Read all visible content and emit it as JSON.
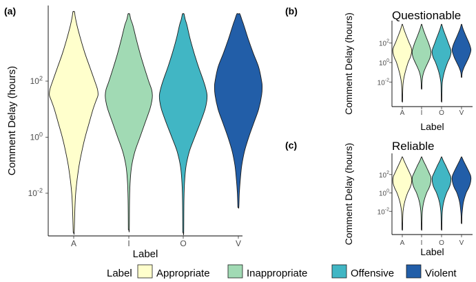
{
  "panels": {
    "a": {
      "tag": "(a)"
    },
    "b": {
      "tag": "(b)",
      "title": "Questionable"
    },
    "c": {
      "tag": "(c)",
      "title": "Reliable"
    }
  },
  "legend": {
    "title": "Label",
    "entries": [
      {
        "name": "Appropriate",
        "color": "#ffffcc"
      },
      {
        "name": "Inappropriate",
        "color": "#a1dab4"
      },
      {
        "name": "Offensive",
        "color": "#41b6c4"
      },
      {
        "name": "Violent",
        "color": "#225ea8"
      }
    ]
  },
  "chart_data": [
    {
      "panel": "a",
      "type": "violin",
      "xlabel": "Label",
      "ylabel": "Comment Delay (hours)",
      "yscale": "log10",
      "ylim": [
        0.0003,
        50000
      ],
      "yticks": [
        {
          "value": 0.01,
          "label": "10^-2"
        },
        {
          "value": 1,
          "label": "10^0"
        },
        {
          "value": 100,
          "label": "10^2"
        }
      ],
      "categories": [
        "A",
        "I",
        "O",
        "V"
      ],
      "colors": [
        "#ffffcc",
        "#a1dab4",
        "#41b6c4",
        "#225ea8"
      ],
      "series": [
        {
          "category": "A",
          "min": 0.0004,
          "max": 30000,
          "density": [
            [
              -3.4,
              0.02
            ],
            [
              -2.5,
              0.05
            ],
            [
              -2,
              0.08
            ],
            [
              -1.5,
              0.14
            ],
            [
              -1,
              0.22
            ],
            [
              -0.5,
              0.33
            ],
            [
              0,
              0.46
            ],
            [
              0.5,
              0.62
            ],
            [
              1,
              0.78
            ],
            [
              1.3,
              0.9
            ],
            [
              1.5,
              0.98
            ],
            [
              1.7,
              0.96
            ],
            [
              2,
              0.85
            ],
            [
              2.5,
              0.65
            ],
            [
              3,
              0.45
            ],
            [
              3.5,
              0.28
            ],
            [
              4,
              0.13
            ],
            [
              4.3,
              0.06
            ],
            [
              4.48,
              0.03
            ]
          ]
        },
        {
          "category": "I",
          "min": 0.0005,
          "max": 25000,
          "density": [
            [
              -3.3,
              0.02
            ],
            [
              -2.2,
              0.03
            ],
            [
              -1.5,
              0.06
            ],
            [
              -1,
              0.12
            ],
            [
              -0.5,
              0.25
            ],
            [
              0,
              0.45
            ],
            [
              0.5,
              0.65
            ],
            [
              1,
              0.85
            ],
            [
              1.3,
              0.93
            ],
            [
              1.5,
              0.95
            ],
            [
              1.7,
              0.92
            ],
            [
              2,
              0.8
            ],
            [
              2.5,
              0.62
            ],
            [
              3,
              0.45
            ],
            [
              3.5,
              0.3
            ],
            [
              4,
              0.16
            ],
            [
              4.2,
              0.08
            ],
            [
              4.4,
              0.03
            ]
          ]
        },
        {
          "category": "O",
          "min": 0.0004,
          "max": 25000,
          "density": [
            [
              -3.4,
              0.02
            ],
            [
              -2.2,
              0.03
            ],
            [
              -1.5,
              0.06
            ],
            [
              -1,
              0.12
            ],
            [
              -0.5,
              0.25
            ],
            [
              0,
              0.46
            ],
            [
              0.5,
              0.68
            ],
            [
              1,
              0.88
            ],
            [
              1.3,
              0.95
            ],
            [
              1.5,
              0.96
            ],
            [
              1.7,
              0.92
            ],
            [
              2,
              0.82
            ],
            [
              2.5,
              0.62
            ],
            [
              3,
              0.44
            ],
            [
              3.5,
              0.28
            ],
            [
              4,
              0.15
            ],
            [
              4.2,
              0.08
            ],
            [
              4.4,
              0.03
            ]
          ]
        },
        {
          "category": "V",
          "min": 0.003,
          "max": 25000,
          "density": [
            [
              -2.5,
              0.02
            ],
            [
              -2,
              0.04
            ],
            [
              -1.5,
              0.08
            ],
            [
              -1,
              0.14
            ],
            [
              -0.5,
              0.25
            ],
            [
              0,
              0.42
            ],
            [
              0.5,
              0.62
            ],
            [
              1,
              0.82
            ],
            [
              1.5,
              0.94
            ],
            [
              1.8,
              0.96
            ],
            [
              2,
              0.94
            ],
            [
              2.5,
              0.82
            ],
            [
              3,
              0.6
            ],
            [
              3.5,
              0.4
            ],
            [
              4,
              0.22
            ],
            [
              4.2,
              0.14
            ],
            [
              4.4,
              0.06
            ]
          ]
        }
      ]
    },
    {
      "panel": "b",
      "type": "violin",
      "title": "Questionable",
      "xlabel": "Label",
      "ylabel": "Comment Delay (hours)",
      "yscale": "log10",
      "ylim": [
        3e-05,
        20000
      ],
      "yticks": [
        {
          "value": 0.01,
          "label": "10^-2"
        },
        {
          "value": 1,
          "label": "10^0"
        },
        {
          "value": 100,
          "label": "10^2"
        }
      ],
      "categories": [
        "A",
        "I",
        "O",
        "V"
      ],
      "colors": [
        "#ffffcc",
        "#a1dab4",
        "#41b6c4",
        "#225ea8"
      ],
      "series": [
        {
          "category": "A",
          "min": 0.0001,
          "max": 8000,
          "density": [
            [
              -4,
              0.02
            ],
            [
              -3,
              0.04
            ],
            [
              -2,
              0.1
            ],
            [
              -1,
              0.3
            ],
            [
              0,
              0.6
            ],
            [
              0.5,
              0.82
            ],
            [
              1,
              0.96
            ],
            [
              1.3,
              0.98
            ],
            [
              1.6,
              0.9
            ],
            [
              2,
              0.72
            ],
            [
              2.5,
              0.52
            ],
            [
              3,
              0.32
            ],
            [
              3.5,
              0.14
            ],
            [
              3.9,
              0.03
            ]
          ]
        },
        {
          "category": "I",
          "min": 0.002,
          "max": 8000,
          "density": [
            [
              -2.7,
              0.02
            ],
            [
              -2,
              0.05
            ],
            [
              -1.5,
              0.1
            ],
            [
              -1,
              0.22
            ],
            [
              -0.5,
              0.42
            ],
            [
              0,
              0.66
            ],
            [
              0.5,
              0.88
            ],
            [
              1,
              0.98
            ],
            [
              1.3,
              0.94
            ],
            [
              1.7,
              0.82
            ],
            [
              2,
              0.72
            ],
            [
              2.5,
              0.52
            ],
            [
              3,
              0.32
            ],
            [
              3.5,
              0.14
            ],
            [
              3.9,
              0.03
            ]
          ]
        },
        {
          "category": "O",
          "min": 0.0001,
          "max": 8000,
          "density": [
            [
              -4,
              0.02
            ],
            [
              -3,
              0.04
            ],
            [
              -2,
              0.08
            ],
            [
              -1,
              0.28
            ],
            [
              0,
              0.62
            ],
            [
              0.5,
              0.86
            ],
            [
              1,
              0.98
            ],
            [
              1.3,
              0.96
            ],
            [
              1.6,
              0.86
            ],
            [
              2,
              0.7
            ],
            [
              2.5,
              0.52
            ],
            [
              3,
              0.32
            ],
            [
              3.5,
              0.14
            ],
            [
              3.9,
              0.03
            ]
          ]
        },
        {
          "category": "V",
          "min": 0.03,
          "max": 8000,
          "density": [
            [
              -1.5,
              0.02
            ],
            [
              -1,
              0.08
            ],
            [
              -0.5,
              0.26
            ],
            [
              0,
              0.5
            ],
            [
              0.5,
              0.74
            ],
            [
              1,
              0.92
            ],
            [
              1.3,
              0.98
            ],
            [
              1.6,
              0.92
            ],
            [
              2,
              0.78
            ],
            [
              2.5,
              0.56
            ],
            [
              3,
              0.34
            ],
            [
              3.5,
              0.14
            ],
            [
              3.9,
              0.03
            ]
          ]
        }
      ]
    },
    {
      "panel": "c",
      "type": "violin",
      "title": "Reliable",
      "xlabel": "Label",
      "ylabel": "Comment Delay (hours)",
      "yscale": "log10",
      "ylim": [
        3e-05,
        20000
      ],
      "yticks": [
        {
          "value": 0.01,
          "label": "10^-2"
        },
        {
          "value": 1,
          "label": "10^0"
        },
        {
          "value": 100,
          "label": "10^2"
        }
      ],
      "categories": [
        "A",
        "I",
        "O",
        "V"
      ],
      "colors": [
        "#ffffcc",
        "#a1dab4",
        "#41b6c4",
        "#225ea8"
      ],
      "series": [
        {
          "category": "A",
          "min": 0.0001,
          "max": 8000,
          "density": [
            [
              -4,
              0.02
            ],
            [
              -3,
              0.04
            ],
            [
              -2,
              0.08
            ],
            [
              -1,
              0.24
            ],
            [
              0,
              0.55
            ],
            [
              0.5,
              0.78
            ],
            [
              1,
              0.94
            ],
            [
              1.4,
              0.98
            ],
            [
              1.8,
              0.92
            ],
            [
              2,
              0.84
            ],
            [
              2.5,
              0.62
            ],
            [
              3,
              0.4
            ],
            [
              3.5,
              0.18
            ],
            [
              3.9,
              0.03
            ]
          ]
        },
        {
          "category": "I",
          "min": 0.0001,
          "max": 8000,
          "density": [
            [
              -4,
              0.02
            ],
            [
              -3,
              0.04
            ],
            [
              -2,
              0.08
            ],
            [
              -1,
              0.22
            ],
            [
              0,
              0.52
            ],
            [
              0.5,
              0.76
            ],
            [
              1,
              0.92
            ],
            [
              1.5,
              0.98
            ],
            [
              1.8,
              0.94
            ],
            [
              2,
              0.86
            ],
            [
              2.5,
              0.64
            ],
            [
              3,
              0.42
            ],
            [
              3.5,
              0.18
            ],
            [
              3.9,
              0.03
            ]
          ]
        },
        {
          "category": "O",
          "min": 0.0001,
          "max": 8000,
          "density": [
            [
              -4,
              0.02
            ],
            [
              -3,
              0.04
            ],
            [
              -2,
              0.08
            ],
            [
              -1,
              0.22
            ],
            [
              0,
              0.52
            ],
            [
              0.5,
              0.76
            ],
            [
              1,
              0.92
            ],
            [
              1.5,
              0.98
            ],
            [
              1.8,
              0.94
            ],
            [
              2,
              0.86
            ],
            [
              2.5,
              0.64
            ],
            [
              3,
              0.42
            ],
            [
              3.5,
              0.18
            ],
            [
              3.9,
              0.03
            ]
          ]
        },
        {
          "category": "V",
          "min": 0.0005,
          "max": 8000,
          "density": [
            [
              -3.3,
              0.02
            ],
            [
              -2.5,
              0.04
            ],
            [
              -2,
              0.08
            ],
            [
              -1,
              0.2
            ],
            [
              0,
              0.48
            ],
            [
              0.5,
              0.72
            ],
            [
              1,
              0.9
            ],
            [
              1.5,
              0.98
            ],
            [
              1.8,
              0.96
            ],
            [
              2,
              0.9
            ],
            [
              2.5,
              0.68
            ],
            [
              3,
              0.44
            ],
            [
              3.5,
              0.2
            ],
            [
              3.9,
              0.03
            ]
          ]
        }
      ]
    }
  ]
}
